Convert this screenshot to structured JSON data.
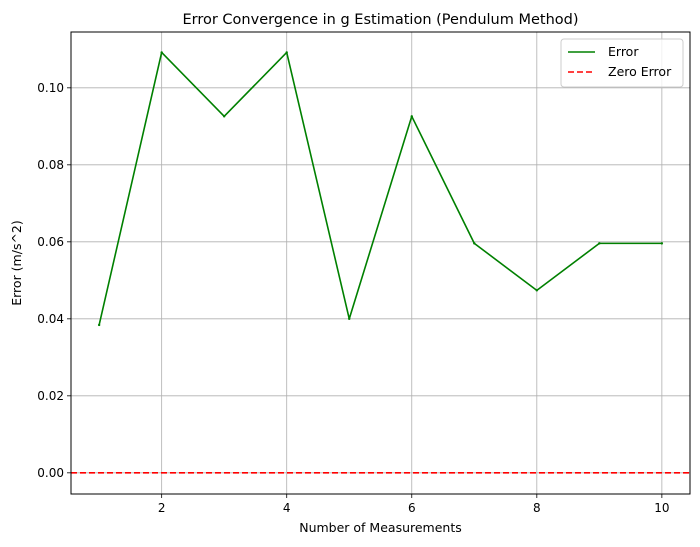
{
  "chart_data": {
    "type": "line",
    "title": "Error Convergence in g Estimation (Pendulum Method)",
    "xlabel": "Number of Measurements",
    "ylabel": "Error (m/s^2)",
    "xlim": [
      0.55,
      10.45
    ],
    "ylim": [
      -0.0055,
      0.1145
    ],
    "xticks": [
      2,
      4,
      6,
      8,
      10
    ],
    "yticks": [
      0.0,
      0.02,
      0.04,
      0.06,
      0.08,
      0.1
    ],
    "xtick_labels": [
      "2",
      "4",
      "6",
      "8",
      "10"
    ],
    "ytick_labels": [
      "0.00",
      "0.02",
      "0.04",
      "0.06",
      "0.08",
      "0.10"
    ],
    "grid": true,
    "legend_position": "top-right",
    "series": [
      {
        "name": "Error",
        "color": "#008000",
        "style": "solid",
        "x": [
          1,
          2,
          3,
          4,
          5,
          6,
          7,
          8,
          9,
          10
        ],
        "values": [
          0.0384,
          0.1092,
          0.0926,
          0.1092,
          0.04,
          0.0926,
          0.0596,
          0.0474,
          0.0596,
          0.0596
        ]
      }
    ],
    "hlines": [
      {
        "name": "Zero Error",
        "y": 0.0,
        "color": "#ff0000",
        "style": "dashed"
      }
    ]
  }
}
